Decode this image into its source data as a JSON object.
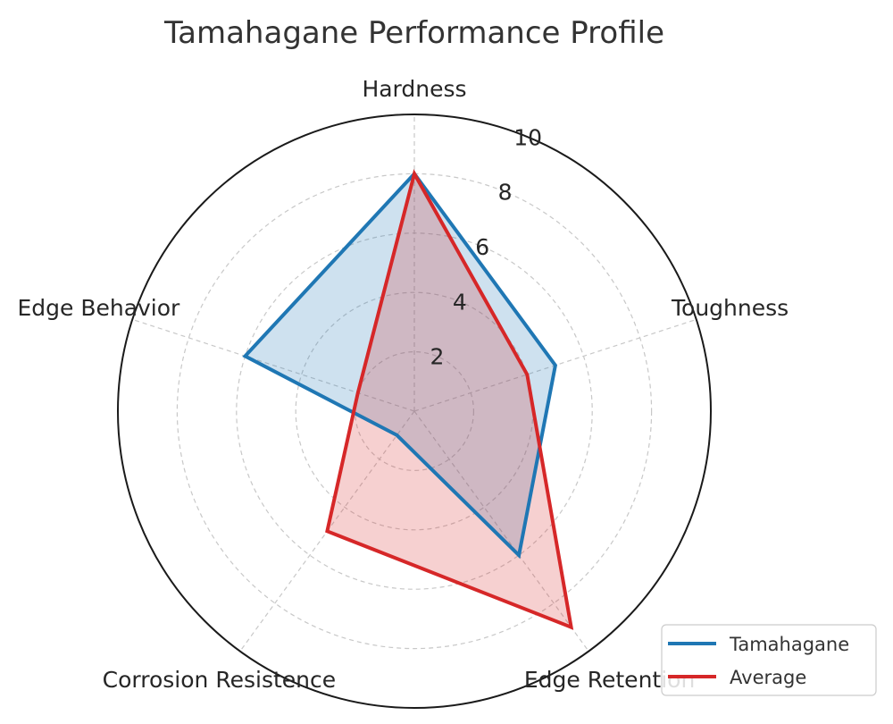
{
  "chart_data": {
    "type": "radar",
    "title": "Tamahagane Performance Profile",
    "categories": [
      "Hardness",
      "Toughness",
      "Edge Retention",
      "Corrosion Resistence",
      "Edge Behavior"
    ],
    "rlim": [
      0,
      10
    ],
    "rticks": [
      2,
      4,
      6,
      8,
      10
    ],
    "grid": true,
    "legend_position": "bottom-right",
    "series": [
      {
        "name": "Tamahagane",
        "values": [
          8,
          5,
          6,
          1,
          6
        ],
        "color": "#1f77b4"
      },
      {
        "name": "Average",
        "values": [
          8,
          4,
          9,
          5,
          2
        ],
        "color": "#d62728"
      }
    ]
  }
}
